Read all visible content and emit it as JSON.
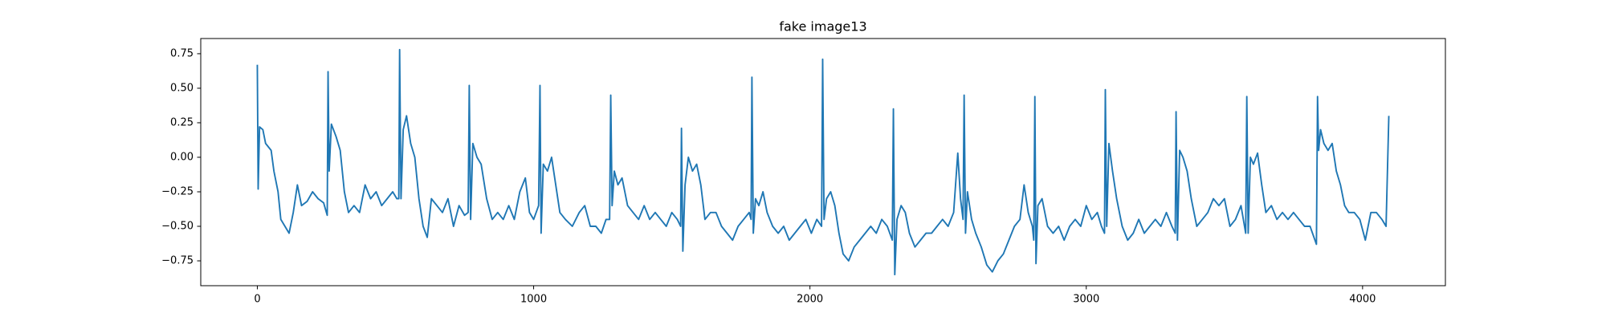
{
  "chart_data": {
    "type": "line",
    "title": "fake image13",
    "color": "#1f77b4",
    "xlim": [
      -204.75,
      4299.75
    ],
    "ylim": [
      -0.93,
      0.86
    ],
    "xticks": [
      0,
      1000,
      2000,
      3000,
      4000
    ],
    "yticks": [
      {
        "value": -0.75,
        "label": "−0.75"
      },
      {
        "value": -0.5,
        "label": "−0.50"
      },
      {
        "value": -0.25,
        "label": "−0.25"
      },
      {
        "value": 0,
        "label": "0.00"
      },
      0.25,
      {
        "value": 0.5,
        "label": "0.50"
      },
      0.75
    ],
    "x": [
      0,
      3,
      8,
      20,
      30,
      50,
      60,
      75,
      85,
      100,
      115,
      130,
      145,
      160,
      180,
      200,
      220,
      240,
      250,
      253,
      256,
      260,
      268,
      285,
      300,
      315,
      330,
      350,
      370,
      390,
      410,
      430,
      450,
      470,
      490,
      505,
      512,
      515,
      520,
      528,
      540,
      555,
      570,
      585,
      600,
      615,
      630,
      650,
      670,
      690,
      710,
      730,
      750,
      763,
      767,
      772,
      780,
      795,
      810,
      830,
      850,
      870,
      890,
      910,
      930,
      950,
      970,
      985,
      1000,
      1018,
      1023,
      1027,
      1035,
      1050,
      1065,
      1080,
      1095,
      1115,
      1140,
      1165,
      1185,
      1205,
      1225,
      1245,
      1262,
      1275,
      1279,
      1284,
      1292,
      1305,
      1320,
      1340,
      1360,
      1380,
      1400,
      1420,
      1440,
      1460,
      1480,
      1500,
      1520,
      1532,
      1535,
      1540,
      1548,
      1560,
      1575,
      1590,
      1605,
      1620,
      1640,
      1660,
      1680,
      1700,
      1720,
      1740,
      1760,
      1780,
      1787,
      1790,
      1795,
      1803,
      1815,
      1830,
      1845,
      1865,
      1885,
      1905,
      1925,
      1945,
      1965,
      1985,
      2005,
      2025,
      2042,
      2046,
      2051,
      2060,
      2075,
      2090,
      2105,
      2120,
      2140,
      2160,
      2180,
      2200,
      2220,
      2240,
      2260,
      2280,
      2298,
      2302,
      2307,
      2315,
      2330,
      2345,
      2360,
      2380,
      2400,
      2420,
      2440,
      2460,
      2480,
      2500,
      2520,
      2535,
      2545,
      2554,
      2558,
      2563,
      2570,
      2585,
      2600,
      2620,
      2640,
      2660,
      2680,
      2700,
      2720,
      2740,
      2760,
      2775,
      2790,
      2805,
      2810,
      2814,
      2818,
      2825,
      2840,
      2860,
      2880,
      2900,
      2920,
      2940,
      2960,
      2980,
      3000,
      3020,
      3040,
      3055,
      3066,
      3069,
      3074,
      3082,
      3095,
      3110,
      3130,
      3150,
      3170,
      3190,
      3210,
      3230,
      3250,
      3270,
      3290,
      3310,
      3322,
      3325,
      3330,
      3338,
      3350,
      3365,
      3380,
      3400,
      3420,
      3440,
      3460,
      3480,
      3500,
      3520,
      3540,
      3560,
      3577,
      3581,
      3586,
      3594,
      3605,
      3620,
      3635,
      3650,
      3670,
      3690,
      3710,
      3730,
      3750,
      3770,
      3790,
      3810,
      3833,
      3837,
      3841,
      3848,
      3860,
      3875,
      3890,
      3905,
      3920,
      3935,
      3950,
      3970,
      3990,
      4010,
      4030,
      4050,
      4070,
      4085,
      4095
    ],
    "values": [
      0.67,
      -0.23,
      0.22,
      0.2,
      0.1,
      0.05,
      -0.1,
      -0.25,
      -0.45,
      -0.5,
      -0.55,
      -0.4,
      -0.2,
      -0.35,
      -0.32,
      -0.25,
      -0.3,
      -0.33,
      -0.4,
      -0.42,
      0.62,
      -0.1,
      0.24,
      0.15,
      0.05,
      -0.25,
      -0.4,
      -0.35,
      -0.4,
      -0.2,
      -0.3,
      -0.25,
      -0.35,
      -0.3,
      -0.25,
      -0.3,
      -0.3,
      0.78,
      -0.3,
      0.2,
      0.3,
      0.1,
      0.0,
      -0.3,
      -0.5,
      -0.58,
      -0.3,
      -0.35,
      -0.4,
      -0.3,
      -0.5,
      -0.35,
      -0.42,
      -0.4,
      0.52,
      -0.45,
      0.1,
      0.0,
      -0.05,
      -0.3,
      -0.45,
      -0.4,
      -0.45,
      -0.35,
      -0.45,
      -0.25,
      -0.15,
      -0.4,
      -0.45,
      -0.35,
      0.52,
      -0.55,
      -0.05,
      -0.1,
      0.0,
      -0.2,
      -0.4,
      -0.45,
      -0.5,
      -0.4,
      -0.35,
      -0.5,
      -0.5,
      -0.55,
      -0.45,
      -0.45,
      0.45,
      -0.35,
      -0.1,
      -0.2,
      -0.15,
      -0.35,
      -0.4,
      -0.45,
      -0.35,
      -0.45,
      -0.4,
      -0.45,
      -0.5,
      -0.4,
      -0.45,
      -0.5,
      0.21,
      -0.68,
      -0.2,
      0.0,
      -0.1,
      -0.05,
      -0.2,
      -0.45,
      -0.4,
      -0.4,
      -0.5,
      -0.55,
      -0.6,
      -0.5,
      -0.45,
      -0.4,
      -0.45,
      0.58,
      -0.55,
      -0.3,
      -0.35,
      -0.25,
      -0.4,
      -0.5,
      -0.55,
      -0.5,
      -0.6,
      -0.55,
      -0.5,
      -0.45,
      -0.55,
      -0.45,
      -0.5,
      0.71,
      -0.45,
      -0.3,
      -0.25,
      -0.35,
      -0.55,
      -0.7,
      -0.75,
      -0.65,
      -0.6,
      -0.55,
      -0.5,
      -0.55,
      -0.45,
      -0.5,
      -0.6,
      0.35,
      -0.85,
      -0.45,
      -0.35,
      -0.4,
      -0.55,
      -0.65,
      -0.6,
      -0.55,
      -0.55,
      -0.5,
      -0.45,
      -0.5,
      -0.4,
      0.03,
      -0.3,
      -0.45,
      0.45,
      -0.55,
      -0.25,
      -0.45,
      -0.55,
      -0.65,
      -0.78,
      -0.83,
      -0.75,
      -0.7,
      -0.6,
      -0.5,
      -0.45,
      -0.2,
      -0.4,
      -0.5,
      -0.6,
      0.44,
      -0.77,
      -0.35,
      -0.3,
      -0.5,
      -0.55,
      -0.5,
      -0.6,
      -0.5,
      -0.45,
      -0.5,
      -0.35,
      -0.45,
      -0.4,
      -0.5,
      -0.55,
      0.49,
      -0.5,
      0.1,
      -0.1,
      -0.3,
      -0.5,
      -0.6,
      -0.55,
      -0.45,
      -0.55,
      -0.5,
      -0.45,
      -0.5,
      -0.4,
      -0.5,
      -0.55,
      0.33,
      -0.6,
      0.05,
      0.0,
      -0.1,
      -0.3,
      -0.5,
      -0.45,
      -0.4,
      -0.3,
      -0.35,
      -0.3,
      -0.5,
      -0.45,
      -0.35,
      -0.55,
      0.44,
      -0.55,
      0.0,
      -0.05,
      0.03,
      -0.2,
      -0.4,
      -0.35,
      -0.45,
      -0.4,
      -0.45,
      -0.4,
      -0.45,
      -0.5,
      -0.5,
      -0.63,
      0.44,
      0.05,
      0.2,
      0.1,
      0.05,
      0.1,
      -0.1,
      -0.2,
      -0.35,
      -0.4,
      -0.4,
      -0.45,
      -0.6,
      -0.4,
      -0.4,
      -0.45,
      -0.5,
      0.3
    ]
  }
}
